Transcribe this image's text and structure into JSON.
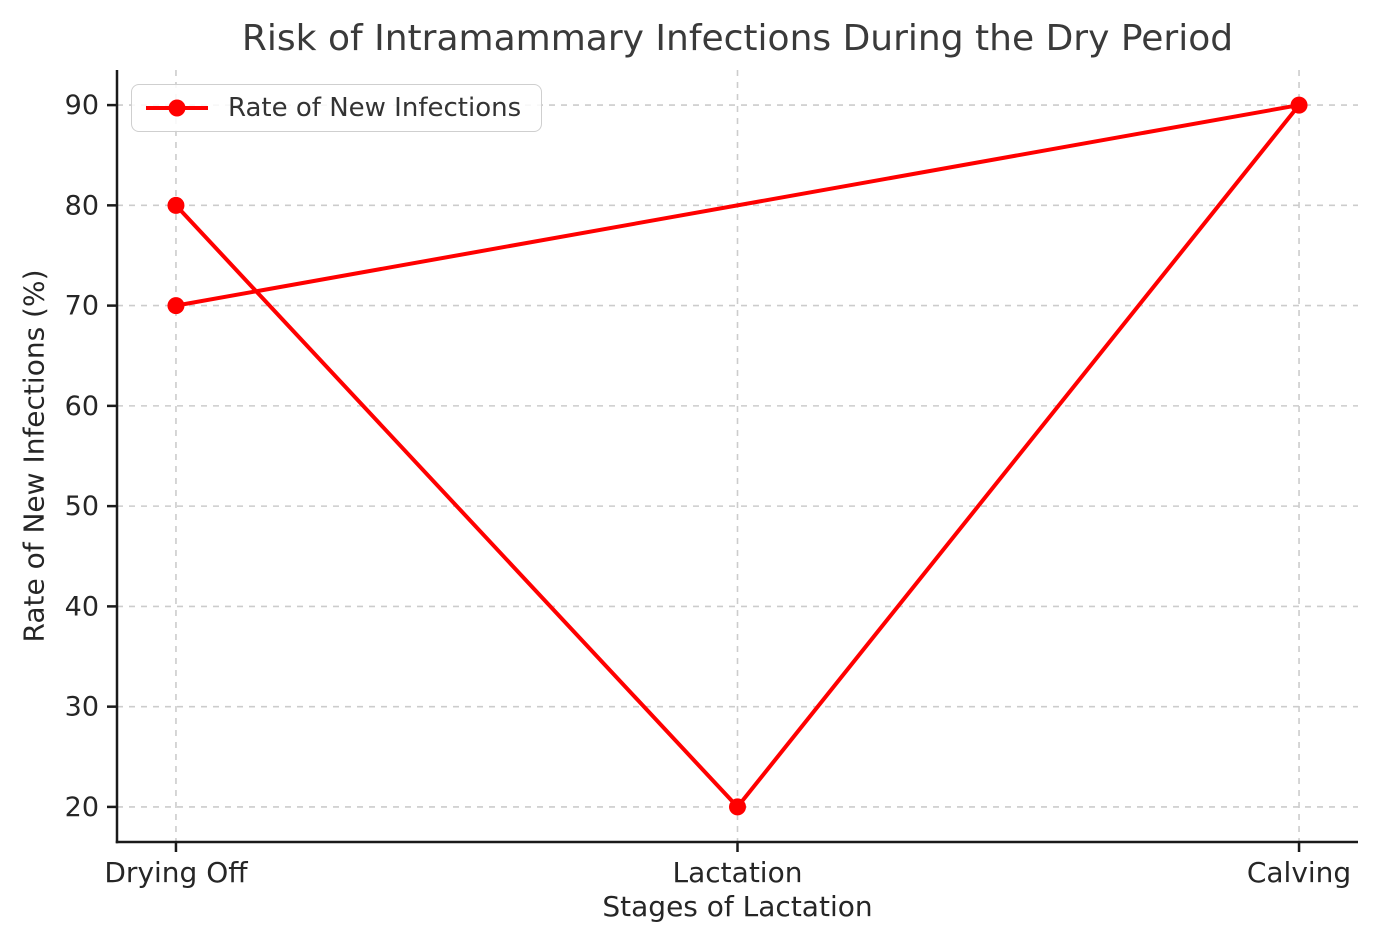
{
  "chart_data": {
    "type": "line",
    "title": "Risk of Intramammary Infections During the Dry Period",
    "xlabel": "Stages of Lactation",
    "ylabel": "Rate of New Infections (%)",
    "categories": [
      "Drying Off",
      "Lactation",
      "Calving"
    ],
    "series": [
      {
        "name": "Rate of New Infections",
        "points": [
          {
            "x": "Drying Off",
            "y": 80
          },
          {
            "x": "Lactation",
            "y": 20
          },
          {
            "x": "Calving",
            "y": 90
          },
          {
            "x": "Drying Off",
            "y": 70
          }
        ],
        "color": "#ff0000",
        "marker": "circle"
      }
    ],
    "yticks": [
      20,
      30,
      40,
      50,
      60,
      70,
      80,
      90
    ],
    "ylim": [
      16.5,
      93.5
    ],
    "xlim_index": [
      -0.105,
      2.105
    ],
    "grid": {
      "show": true,
      "style": "dashed",
      "color": "#cccccc"
    },
    "legend": {
      "position": "upper left",
      "entries": [
        "Rate of New Infections"
      ]
    }
  },
  "colors": {
    "series": "#ff0000",
    "grid": "#cccccc",
    "spine": "#1a1a1a",
    "tick_label": "#262626",
    "title": "#3a3a3a",
    "legend_border": "#cfcfcf",
    "legend_text": "#333333"
  }
}
